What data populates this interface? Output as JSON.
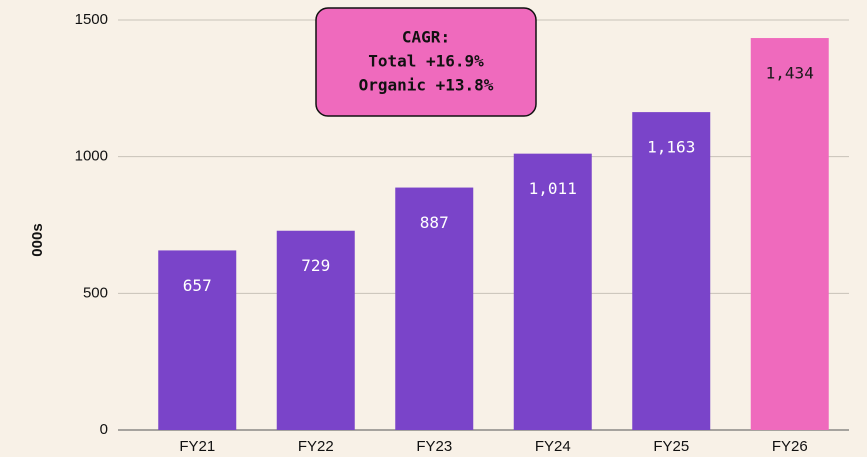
{
  "chart_data": {
    "type": "bar",
    "y_label": "000s",
    "categories": [
      "FY21",
      "FY22",
      "FY23",
      "FY24",
      "FY25",
      "FY26"
    ],
    "values": [
      657,
      729,
      887,
      1011,
      1163,
      1434
    ],
    "value_labels": [
      "657",
      "729",
      "887",
      "1,011",
      "1,163",
      "1,434"
    ],
    "colors": [
      "#7a44c9",
      "#7a44c9",
      "#7a44c9",
      "#7a44c9",
      "#7a44c9",
      "#ef6abd"
    ],
    "label_colors": [
      "#ffffff",
      "#ffffff",
      "#ffffff",
      "#ffffff",
      "#ffffff",
      "#1a1a1a"
    ],
    "annotation": [
      "CAGR:",
      "Total +16.9%",
      "Organic +13.8%"
    ],
    "ylim": [
      0,
      1500
    ],
    "yticks": [
      0,
      500,
      1000,
      1500
    ],
    "grid": true
  }
}
